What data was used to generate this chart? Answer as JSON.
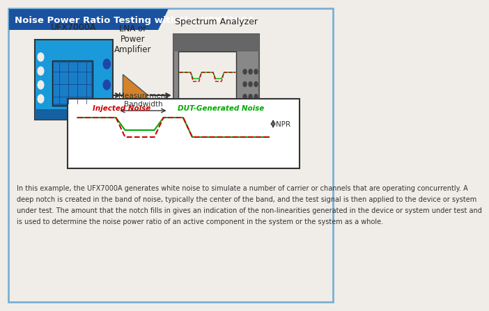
{
  "title": "Noise Power Ratio Testing with the UFX7000A",
  "title_bg": "#1a52a0",
  "title_color": "#ffffff",
  "bg_color": "#f0ede8",
  "border_color": "#7ab0d4",
  "label_ufx": "UFX7000A",
  "label_lna": "LNA or\nPower\nAmplifier",
  "label_spectrum": "Spectrum Analyzer",
  "label_injected": "Injected Noise",
  "label_dut": "DUT-Generated Noise",
  "label_measurement": "Measurement\nBandwidth",
  "label_npr": "NPR",
  "body_lines": [
    "In this example, the UFX7000A generates white noise to simulate a number of carrier or channels that are operating concurrently. A",
    "deep notch is created in the band of noise, typically the center of the band, and the test signal is then applied to the device or system",
    "under test. The amount that the notch fills in gives an indication of the non-linearities generated in the device or system under test and",
    "is used to determine the noise power ratio of an active component in the system or the system as a whole."
  ]
}
